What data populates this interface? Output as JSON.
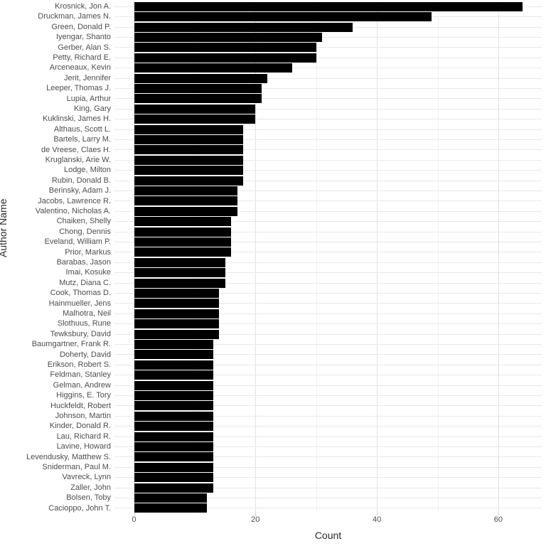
{
  "chart_data": {
    "type": "bar",
    "orientation": "horizontal",
    "title": "",
    "xlabel": "Count",
    "ylabel": "Author Name",
    "xlim": [
      0,
      67
    ],
    "x_tick_values": [
      0,
      20,
      40,
      60
    ],
    "x_minor_gridlines": [
      10,
      30,
      50
    ],
    "grid": "on",
    "legend": "none",
    "bar_color": "#000000",
    "background_color": "#ffffff",
    "major_grid_color": "#e3e3e3",
    "minor_grid_color": "#f1f1f1",
    "axis_text_color": "#4d4d4d",
    "categories": [
      "Krosnick, Jon A.",
      "Druckman, James N.",
      "Green, Donald P.",
      "Iyengar, Shanto",
      "Gerber, Alan S.",
      "Petty, Richard E.",
      "Arceneaux, Kevin",
      "Jerit, Jennifer",
      "Leeper, Thomas J.",
      "Lupia, Arthur",
      "King, Gary",
      "Kuklinski, James H.",
      "Althaus, Scott L.",
      "Bartels, Larry M.",
      "de Vreese, Claes H.",
      "Kruglanski, Arie W.",
      "Lodge, Milton",
      "Rubin, Donald B.",
      "Berinsky, Adam J.",
      "Jacobs, Lawrence R.",
      "Valentino, Nicholas A.",
      "Chaiken, Shelly",
      "Chong, Dennis",
      "Eveland, William P.",
      "Prior, Markus",
      "Barabas, Jason",
      "Imai, Kosuke",
      "Mutz, Diana C.",
      "Cook, Thomas D.",
      "Hainmueller, Jens",
      "Malhotra, Neil",
      "Slothuus, Rune",
      "Tewksbury, David",
      "Baumgartner, Frank R.",
      "Doherty, David",
      "Erikson, Robert S.",
      "Feldman, Stanley",
      "Gelman, Andrew",
      "Higgins, E. Tory",
      "Huckfeldt, Robert",
      "Johnson, Martin",
      "Kinder, Donald R.",
      "Lau, Richard R.",
      "Lavine, Howard",
      "Levendusky, Matthew S.",
      "Sniderman, Paul M.",
      "Vavreck, Lynn",
      "Zaller, John",
      "Bolsen, Toby",
      "Cacioppo, John T."
    ],
    "values": [
      64,
      49,
      36,
      31,
      30,
      30,
      26,
      22,
      21,
      21,
      20,
      20,
      18,
      18,
      18,
      18,
      18,
      18,
      17,
      17,
      17,
      16,
      16,
      16,
      16,
      15,
      15,
      15,
      14,
      14,
      14,
      14,
      14,
      13,
      13,
      13,
      13,
      13,
      13,
      13,
      13,
      13,
      13,
      13,
      13,
      13,
      13,
      13,
      12,
      12
    ]
  }
}
